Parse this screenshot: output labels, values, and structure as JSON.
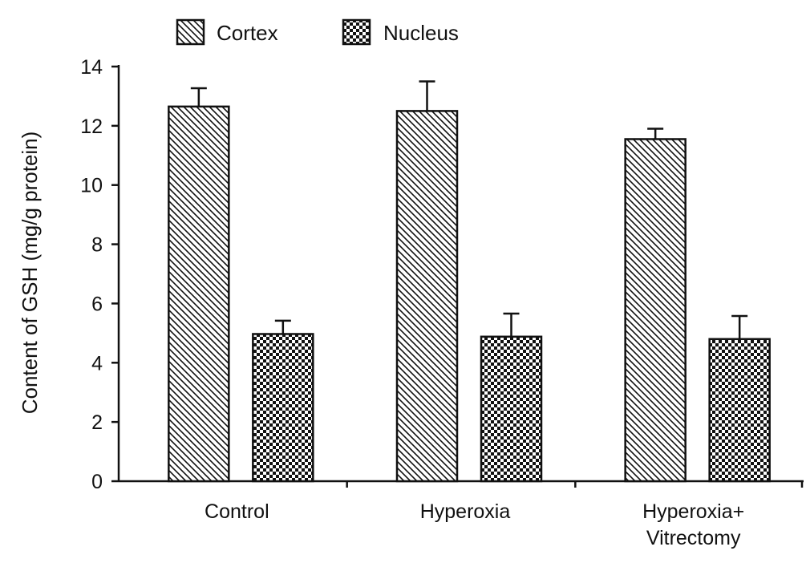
{
  "chart_data": {
    "type": "bar",
    "title": "",
    "xlabel": "",
    "ylabel": "Content of GSH (mg/g protein)",
    "ylim": [
      0,
      14
    ],
    "yticks": [
      0,
      2,
      4,
      6,
      8,
      10,
      12,
      14
    ],
    "categories": [
      "Control",
      "Hyperoxia",
      "Hyperoxia+ Vitrectomy"
    ],
    "category_lines": [
      [
        "Control"
      ],
      [
        "Hyperoxia"
      ],
      [
        "Hyperoxia+",
        "Vitrectomy"
      ]
    ],
    "series": [
      {
        "name": "Cortex",
        "pattern": "diagonal-hatch",
        "values": [
          12.65,
          12.5,
          11.55
        ],
        "errors": [
          0.62,
          1.0,
          0.35
        ]
      },
      {
        "name": "Nucleus",
        "pattern": "checkerboard",
        "values": [
          4.97,
          4.88,
          4.8
        ],
        "errors": [
          0.45,
          0.78,
          0.78
        ]
      }
    ],
    "legend_position": "top-left",
    "grid": false,
    "colors": {
      "bar_stroke": "#111111",
      "fill": "#ffffff",
      "pattern": "#111111"
    }
  }
}
